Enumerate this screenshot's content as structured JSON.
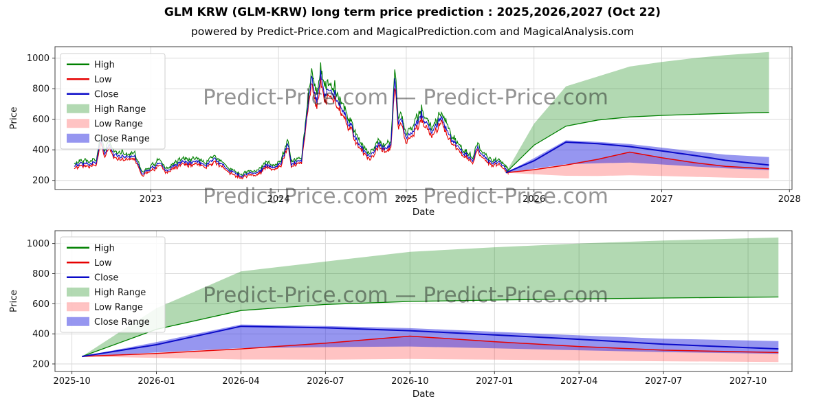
{
  "page": {
    "title": "GLM KRW (GLM-KRW) long term price prediction : 2025,2026,2027 (Oct 22)",
    "subtitle": "powered by Predict-Price.com and MagicalPrediction.com and MagicalAnalysis.com",
    "watermark": "Predict-Price.com",
    "watermark_row": "Predict-Price.com — Predict-Price.com"
  },
  "colors": {
    "high": "#008000",
    "low": "#e60000",
    "close": "#0a0ac8",
    "high_range": "rgba(0,128,0,0.30)",
    "low_range": "rgba(255,40,40,0.28)",
    "close_range": "rgba(45,45,225,0.50)",
    "grid": "#d9d9d9",
    "spine": "#3c3c3c",
    "text": "#111111",
    "watermark": "#9a9a9a"
  },
  "legend": {
    "items": [
      {
        "label": "High",
        "swatch": "line",
        "color_key": "high"
      },
      {
        "label": "Low",
        "swatch": "line",
        "color_key": "low"
      },
      {
        "label": "Close",
        "swatch": "line",
        "color_key": "close"
      },
      {
        "label": "High Range",
        "swatch": "patch",
        "color_key": "high_range"
      },
      {
        "label": "Low Range",
        "swatch": "patch",
        "color_key": "low_range"
      },
      {
        "label": "Close Range",
        "swatch": "patch",
        "color_key": "close_range"
      }
    ]
  },
  "chart_data": [
    {
      "type": "line",
      "name": "historical-and-prediction",
      "xlabel": "Date",
      "ylabel": "Price",
      "xlim": [
        2022.25,
        2028.02
      ],
      "ylim": [
        140,
        1075
      ],
      "grid": true,
      "legend_position": "upper-left",
      "yticks": [
        200,
        400,
        600,
        800,
        1000
      ],
      "xticks": [
        {
          "v": 2023,
          "label": "2023"
        },
        {
          "v": 2024,
          "label": "2024"
        },
        {
          "v": 2025,
          "label": "2025"
        },
        {
          "v": 2026,
          "label": "2026"
        },
        {
          "v": 2027,
          "label": "2027"
        },
        {
          "v": 2028,
          "label": "2028"
        }
      ],
      "historical": {
        "series_names": [
          "High",
          "Low",
          "Close"
        ],
        "noise_seed": 7,
        "noise_amp": 0.09,
        "keypoints_t": [
          2022.4,
          2022.46,
          2022.52,
          2022.57,
          2022.61,
          2022.64,
          2022.67,
          2022.71,
          2022.78,
          2022.83,
          2022.88,
          2022.93,
          2023.0,
          2023.06,
          2023.12,
          2023.18,
          2023.25,
          2023.31,
          2023.37,
          2023.43,
          2023.49,
          2023.55,
          2023.6,
          2023.66,
          2023.72,
          2023.78,
          2023.84,
          2023.9,
          2023.96,
          2024.02,
          2024.07,
          2024.1,
          2024.14,
          2024.18,
          2024.22,
          2024.26,
          2024.3,
          2024.33,
          2024.36,
          2024.4,
          2024.44,
          2024.48,
          2024.52,
          2024.56,
          2024.6,
          2024.64,
          2024.68,
          2024.72,
          2024.76,
          2024.8,
          2024.84,
          2024.88,
          2024.91,
          2024.94,
          2024.97,
          2025.0,
          2025.04,
          2025.08,
          2025.12,
          2025.16,
          2025.2,
          2025.24,
          2025.28,
          2025.32,
          2025.36,
          2025.4,
          2025.44,
          2025.48,
          2025.52,
          2025.56,
          2025.6,
          2025.64,
          2025.68,
          2025.72,
          2025.76,
          2025.8
        ],
        "keypoints_close": [
          300,
          315,
          295,
          330,
          470,
          370,
          430,
          360,
          345,
          355,
          345,
          240,
          290,
          305,
          268,
          285,
          325,
          310,
          330,
          305,
          345,
          310,
          270,
          250,
          235,
          245,
          255,
          300,
          285,
          305,
          455,
          310,
          325,
          340,
          620,
          870,
          720,
          880,
          760,
          830,
          780,
          700,
          620,
          560,
          480,
          430,
          390,
          360,
          420,
          440,
          415,
          445,
          870,
          560,
          590,
          480,
          520,
          560,
          640,
          580,
          530,
          560,
          610,
          520,
          470,
          430,
          380,
          360,
          340,
          420,
          360,
          330,
          310,
          320,
          290,
          255
        ]
      },
      "forecast": {
        "t": [
          2025.78,
          2026.0,
          2026.25,
          2026.5,
          2026.75,
          2027.0,
          2027.25,
          2027.5,
          2027.84
        ],
        "labels": [
          "2025-10",
          "2026-01",
          "2026-04",
          "2026-07",
          "2026-10",
          "2027-01",
          "2027-04",
          "2027-07",
          "2027-10"
        ],
        "high_upper": [
          250,
          570,
          815,
          880,
          945,
          975,
          1000,
          1020,
          1040
        ],
        "high_lower": [
          250,
          430,
          555,
          595,
          615,
          625,
          632,
          638,
          645
        ],
        "close_upper": [
          250,
          345,
          462,
          452,
          438,
          414,
          390,
          368,
          352
        ],
        "close": [
          250,
          328,
          450,
          440,
          421,
          393,
          364,
          331,
          300
        ],
        "close_lower": [
          250,
          276,
          305,
          312,
          316,
          304,
          291,
          279,
          267
        ],
        "low_upper": [
          250,
          270,
          300,
          338,
          385,
          348,
          316,
          292,
          276
        ],
        "low_lower": [
          250,
          240,
          230,
          229,
          233,
          229,
          223,
          218,
          213
        ]
      }
    },
    {
      "type": "line",
      "name": "prediction-zoom",
      "xlabel": "Date",
      "ylabel": "Price",
      "xlim": [
        2025.7,
        2027.88
      ],
      "ylim": [
        150,
        1085
      ],
      "grid": true,
      "legend_position": "upper-left",
      "yticks": [
        200,
        400,
        600,
        800,
        1000
      ],
      "xticks": [
        {
          "v": 2025.75,
          "label": "2025-10"
        },
        {
          "v": 2026.0,
          "label": "2026-01"
        },
        {
          "v": 2026.25,
          "label": "2026-04"
        },
        {
          "v": 2026.5,
          "label": "2026-07"
        },
        {
          "v": 2026.75,
          "label": "2026-10"
        },
        {
          "v": 2027.0,
          "label": "2027-01"
        },
        {
          "v": 2027.25,
          "label": "2027-04"
        },
        {
          "v": 2027.5,
          "label": "2027-07"
        },
        {
          "v": 2027.75,
          "label": "2027-10"
        }
      ],
      "forecast": {
        "t": [
          2025.78,
          2026.0,
          2026.25,
          2026.5,
          2026.75,
          2027.0,
          2027.25,
          2027.5,
          2027.84
        ],
        "labels": [
          "2025-10",
          "2026-01",
          "2026-04",
          "2026-07",
          "2026-10",
          "2027-01",
          "2027-04",
          "2027-07",
          "2027-10"
        ],
        "high_upper": [
          250,
          570,
          815,
          880,
          945,
          975,
          1000,
          1020,
          1040
        ],
        "high_lower": [
          250,
          430,
          555,
          595,
          615,
          625,
          632,
          638,
          645
        ],
        "close_upper": [
          250,
          345,
          462,
          452,
          438,
          414,
          390,
          368,
          352
        ],
        "close": [
          250,
          328,
          450,
          440,
          421,
          393,
          364,
          331,
          300
        ],
        "close_lower": [
          250,
          276,
          305,
          312,
          316,
          304,
          291,
          279,
          267
        ],
        "low_upper": [
          250,
          270,
          300,
          338,
          385,
          348,
          316,
          292,
          276
        ],
        "low_lower": [
          250,
          240,
          230,
          229,
          233,
          229,
          223,
          218,
          213
        ]
      }
    }
  ]
}
